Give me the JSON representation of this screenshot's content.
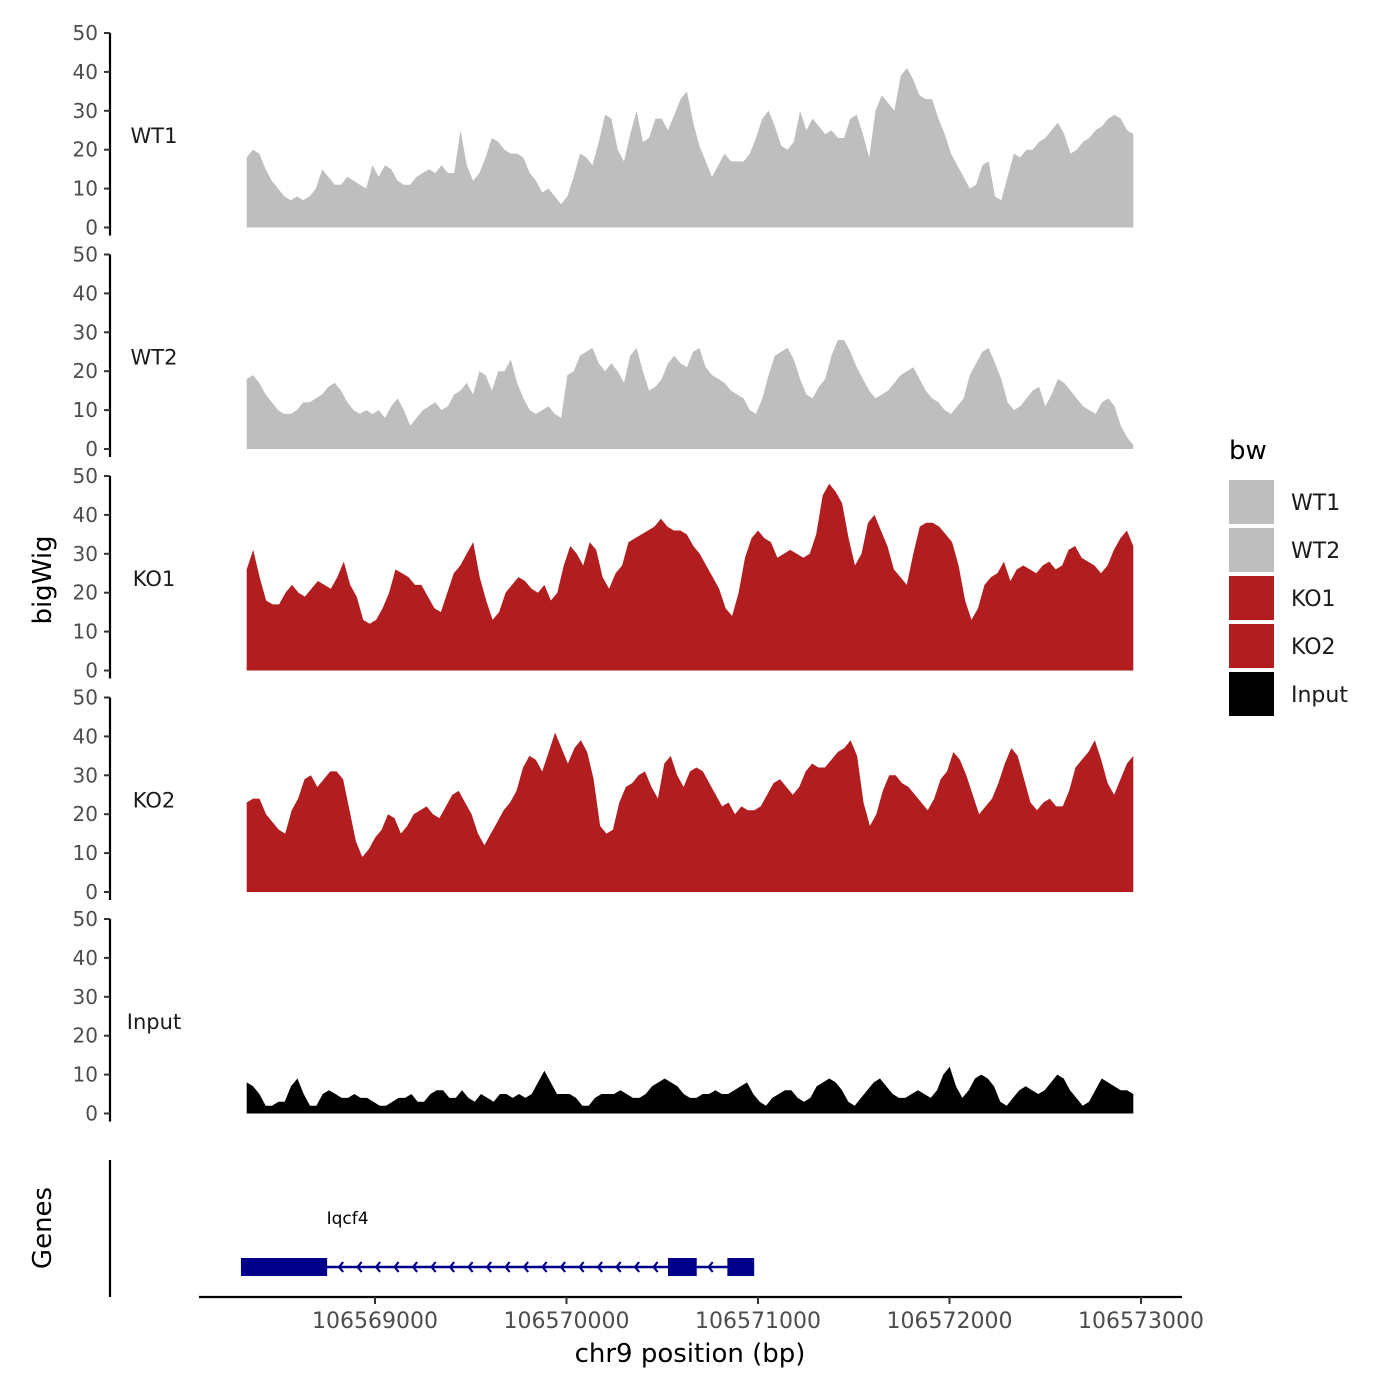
{
  "chart_data": {
    "type": "area",
    "y_axis_title": "bigWig",
    "x_axis_title": "chr9 position (bp)",
    "xlim": [
      106568200,
      106573200
    ],
    "ylim": [
      0,
      50
    ],
    "y_ticks": [
      "0",
      "10",
      "20",
      "30",
      "40",
      "50"
    ],
    "x_ticks": [
      {
        "value": 106569000,
        "label": "106569000"
      },
      {
        "value": 106570000,
        "label": "106570000"
      },
      {
        "value": 106571000,
        "label": "106571000"
      },
      {
        "value": 106572000,
        "label": "106572000"
      },
      {
        "value": 106573000,
        "label": "106573000"
      }
    ],
    "x_start": 106568330,
    "x_end": 106572960,
    "tracks": [
      {
        "name": "WT1",
        "color": "#bebebe",
        "values": [
          18,
          20,
          19,
          15,
          12,
          10,
          8,
          7,
          8,
          7,
          8,
          10,
          15,
          13,
          11,
          11,
          13,
          12,
          11,
          10,
          16,
          13,
          16,
          15,
          12,
          11,
          11,
          13,
          14,
          15,
          14,
          16,
          14,
          14,
          25,
          16,
          12,
          14,
          18,
          23,
          22,
          20,
          19,
          19,
          18,
          14,
          12,
          9,
          10,
          8,
          6,
          8,
          13,
          19,
          18,
          16,
          22,
          29,
          28,
          20,
          17,
          24,
          30,
          22,
          23,
          28,
          28,
          25,
          29,
          33,
          35,
          27,
          21,
          17,
          13,
          16,
          19,
          17,
          17,
          17,
          19,
          23,
          28,
          30,
          26,
          21,
          20,
          22,
          30,
          25,
          28,
          26,
          24,
          25,
          23,
          23,
          28,
          29,
          24,
          18,
          30,
          34,
          32,
          30,
          39,
          41,
          38,
          34,
          33,
          33,
          28,
          24,
          19,
          16,
          13,
          10,
          11,
          16,
          17,
          8,
          7,
          13,
          19,
          18,
          20,
          20,
          22,
          23,
          25,
          27,
          24,
          19,
          20,
          22,
          23,
          25,
          26,
          28,
          29,
          28,
          25,
          24
        ]
      },
      {
        "name": "WT2",
        "color": "#bebebe",
        "values": [
          18,
          19,
          17,
          14,
          12,
          10,
          9,
          9,
          10,
          12,
          12,
          13,
          14,
          16,
          17,
          15,
          12,
          10,
          9,
          10,
          9,
          10,
          8,
          11,
          13,
          10,
          6,
          8,
          10,
          11,
          12,
          10,
          11,
          14,
          15,
          17,
          14,
          20,
          19,
          15,
          20,
          20,
          23,
          17,
          13,
          10,
          9,
          10,
          11,
          9,
          8,
          19,
          20,
          24,
          25,
          26,
          22,
          20,
          22,
          20,
          17,
          24,
          26,
          20,
          15,
          16,
          18,
          22,
          24,
          22,
          21,
          25,
          26,
          21,
          19,
          18,
          17,
          15,
          14,
          13,
          10,
          9,
          13,
          19,
          24,
          25,
          26,
          23,
          18,
          14,
          13,
          16,
          18,
          24,
          28,
          28,
          25,
          21,
          18,
          15,
          13,
          14,
          15,
          17,
          19,
          20,
          21,
          18,
          15,
          13,
          12,
          10,
          9,
          11,
          13,
          19,
          22,
          25,
          26,
          22,
          18,
          12,
          10,
          11,
          13,
          15,
          16,
          11,
          14,
          18,
          17,
          15,
          13,
          11,
          10,
          9,
          12,
          13,
          11,
          6,
          3,
          1
        ]
      },
      {
        "name": "KO1",
        "color": "#b21d1f",
        "values": [
          26,
          31,
          24,
          18,
          17,
          17,
          20,
          22,
          20,
          19,
          21,
          23,
          22,
          21,
          24,
          28,
          22,
          19,
          13,
          12,
          13,
          16,
          20,
          26,
          25,
          24,
          22,
          22,
          19,
          16,
          15,
          20,
          25,
          27,
          30,
          33,
          24,
          18,
          13,
          15,
          20,
          22,
          24,
          23,
          21,
          20,
          22,
          18,
          20,
          27,
          32,
          30,
          27,
          33,
          31,
          24,
          21,
          25,
          27,
          33,
          34,
          35,
          36,
          37,
          39,
          37,
          36,
          36,
          35,
          32,
          30,
          27,
          24,
          21,
          16,
          14,
          20,
          29,
          34,
          36,
          34,
          33,
          29,
          30,
          31,
          30,
          29,
          30,
          35,
          45,
          48,
          46,
          43,
          34,
          27,
          30,
          38,
          40,
          36,
          32,
          26,
          24,
          22,
          30,
          37,
          38,
          38,
          37,
          35,
          33,
          27,
          18,
          13,
          16,
          22,
          24,
          25,
          28,
          23,
          26,
          27,
          26,
          25,
          27,
          28,
          26,
          27,
          31,
          32,
          29,
          28,
          27,
          25,
          27,
          31,
          34,
          36,
          32
        ]
      },
      {
        "name": "KO2",
        "color": "#b21d1f",
        "values": [
          23,
          24,
          24,
          20,
          18,
          16,
          15,
          21,
          24,
          29,
          30,
          27,
          29,
          31,
          31,
          29,
          21,
          13,
          9,
          11,
          14,
          16,
          20,
          19,
          15,
          17,
          20,
          21,
          22,
          20,
          19,
          22,
          25,
          26,
          23,
          20,
          15,
          12,
          15,
          18,
          21,
          23,
          26,
          32,
          35,
          34,
          31,
          36,
          41,
          37,
          33,
          37,
          39,
          36,
          29,
          17,
          15,
          16,
          23,
          27,
          28,
          30,
          31,
          27,
          24,
          33,
          35,
          30,
          27,
          31,
          32,
          31,
          28,
          25,
          22,
          23,
          20,
          22,
          21,
          21,
          22,
          25,
          28,
          29,
          27,
          25,
          27,
          31,
          33,
          32,
          32,
          34,
          36,
          37,
          39,
          35,
          23,
          17,
          20,
          26,
          30,
          30,
          28,
          27,
          25,
          23,
          21,
          24,
          29,
          31,
          36,
          34,
          30,
          25,
          20,
          22,
          24,
          28,
          33,
          37,
          35,
          29,
          23,
          21,
          23,
          24,
          22,
          22,
          26,
          32,
          34,
          36,
          39,
          34,
          28,
          25,
          29,
          33,
          35
        ]
      },
      {
        "name": "Input",
        "color": "#000000",
        "values": [
          8,
          7,
          5,
          2,
          2,
          3,
          3,
          7,
          9,
          5,
          2,
          2,
          5,
          6,
          5,
          4,
          4,
          5,
          4,
          4,
          3,
          2,
          2,
          3,
          4,
          4,
          5,
          3,
          3,
          5,
          6,
          6,
          4,
          4,
          6,
          4,
          3,
          5,
          4,
          3,
          5,
          5,
          4,
          5,
          4,
          5,
          8,
          11,
          8,
          5,
          5,
          5,
          4,
          2,
          2,
          4,
          5,
          5,
          5,
          6,
          5,
          4,
          4,
          5,
          7,
          8,
          9,
          8,
          7,
          5,
          4,
          4,
          5,
          5,
          6,
          5,
          5,
          6,
          7,
          8,
          5,
          3,
          2,
          4,
          5,
          6,
          6,
          4,
          3,
          4,
          7,
          8,
          9,
          8,
          6,
          3,
          2,
          4,
          6,
          8,
          9,
          7,
          5,
          4,
          4,
          5,
          6,
          5,
          4,
          6,
          10,
          12,
          7,
          4,
          6,
          9,
          10,
          9,
          7,
          3,
          2,
          4,
          6,
          7,
          6,
          5,
          6,
          8,
          10,
          9,
          6,
          4,
          2,
          3,
          6,
          9,
          8,
          7,
          6,
          6,
          5
        ]
      }
    ],
    "legend": {
      "title": "bw",
      "placement": "right",
      "entries": [
        {
          "label": "WT1",
          "color": "#bebebe"
        },
        {
          "label": "WT2",
          "color": "#bebebe"
        },
        {
          "label": "KO1",
          "color": "#b21d1f"
        },
        {
          "label": "KO2",
          "color": "#b21d1f"
        },
        {
          "label": "Input",
          "color": "#000000"
        }
      ]
    },
    "genes_panel": {
      "title": "Genes",
      "color": "#00008b",
      "genes": [
        {
          "name": "Iqcf4",
          "strand": "-",
          "start": 106568300,
          "end": 106570980,
          "exons": [
            [
              106568300,
              106568750
            ],
            [
              106570530,
              106570680
            ],
            [
              106570840,
              106570980
            ]
          ]
        }
      ]
    }
  }
}
